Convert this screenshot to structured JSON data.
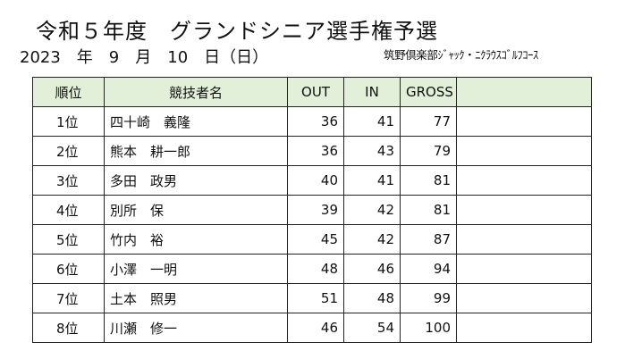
{
  "title": "令和５年度　グランドシニア選手権予選",
  "date": "2023　年　9　月　10　日（日）",
  "venue": "筑野倶楽部ｼﾞｬｯｸ・ﾆｸﾗｳｽｺﾞﾙﾌｺｰｽ",
  "table": {
    "headers": {
      "rank": "順位",
      "name": "競技者名",
      "out": "OUT",
      "in": "IN",
      "gross": "GROSS",
      "blank": ""
    },
    "rows": [
      {
        "rank": "1位",
        "name": "四十崎　義隆",
        "out": "36",
        "in": "41",
        "gross": "77"
      },
      {
        "rank": "2位",
        "name": "熊本　耕一郎",
        "out": "36",
        "in": "43",
        "gross": "79"
      },
      {
        "rank": "3位",
        "name": "多田　政男",
        "out": "40",
        "in": "41",
        "gross": "81"
      },
      {
        "rank": "4位",
        "name": "別所　保",
        "out": "39",
        "in": "42",
        "gross": "81"
      },
      {
        "rank": "5位",
        "name": "竹内　裕",
        "out": "45",
        "in": "42",
        "gross": "87"
      },
      {
        "rank": "6位",
        "name": "小澤　一明",
        "out": "48",
        "in": "46",
        "gross": "94"
      },
      {
        "rank": "7位",
        "name": "土本　照男",
        "out": "51",
        "in": "48",
        "gross": "99"
      },
      {
        "rank": "8位",
        "name": "川瀬　修一",
        "out": "46",
        "in": "54",
        "gross": "100"
      }
    ]
  }
}
